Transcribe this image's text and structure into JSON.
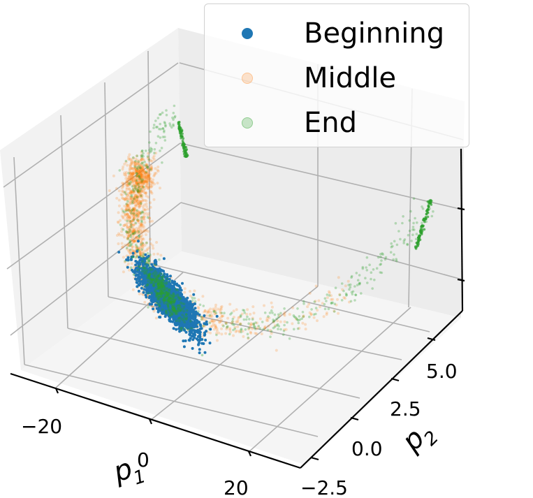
{
  "chart_data": {
    "type": "scatter",
    "projection": "3d",
    "title": "",
    "xlabel": "p_1",
    "ylabel": "p_2",
    "zlabel": "",
    "x_ticks": [
      "−20",
      "0",
      "20"
    ],
    "y_ticks": [
      "−2.5",
      "0.0",
      "2.5",
      "5.0"
    ],
    "z_ticks": [],
    "grid": true,
    "legend_position": "upper right",
    "series": [
      {
        "name": "Beginning",
        "color": "#1f77b4",
        "alpha": 1.0,
        "description": "dense cluster near origin (p1 ~ -5..5, p2 ~ -1..1)"
      },
      {
        "name": "Middle",
        "color": "#ff7f0e",
        "alpha": 0.2,
        "description": "spread along curved manifold around cluster"
      },
      {
        "name": "End",
        "color": "#2ca02c",
        "alpha": 0.25,
        "description": "sparse points along curved arc extending to both ends, dense tips"
      }
    ]
  },
  "legend": {
    "items": [
      {
        "label": "Beginning",
        "color": "#1f77b4",
        "opacity": 1.0
      },
      {
        "label": "Middle",
        "color": "#ff7f0e",
        "opacity": 0.2
      },
      {
        "label": "End",
        "color": "#2ca02c",
        "opacity": 0.25
      }
    ]
  },
  "axes": {
    "x": {
      "label_main": "p",
      "label_sub": "1",
      "ticks": [
        "−20",
        "0",
        "20"
      ]
    },
    "y": {
      "label_main": "p",
      "label_sub": "2",
      "ticks": [
        "−2.5",
        "0.0",
        "2.5",
        "5.0"
      ]
    }
  }
}
